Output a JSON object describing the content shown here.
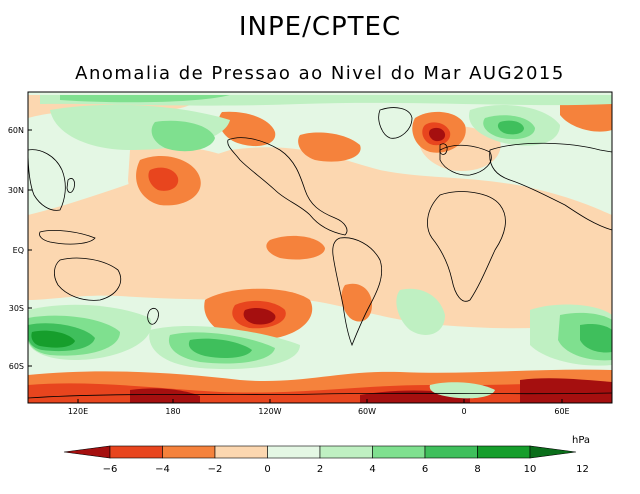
{
  "header": {
    "title": "INPE/CPTEC",
    "subtitle": "Anomalia de Pressao ao Nivel do Mar AUG2015"
  },
  "map": {
    "lat_labels": [
      "60N",
      "30N",
      "EQ",
      "30S",
      "60S"
    ],
    "lon_labels": [
      "120E",
      "180",
      "120W",
      "60W",
      "0",
      "60E"
    ]
  },
  "colorbar": {
    "unit": "hPa",
    "tick_labels": [
      "−6",
      "−4",
      "−2",
      "0",
      "2",
      "4",
      "6",
      "8",
      "10",
      "12"
    ],
    "colors": [
      "#a50f0f",
      "#e8451e",
      "#f5823c",
      "#fcd7b0",
      "#e4f7e4",
      "#bff0c2",
      "#7fe08f",
      "#3fbf5c",
      "#169e2c",
      "#0a6e1a"
    ]
  }
}
